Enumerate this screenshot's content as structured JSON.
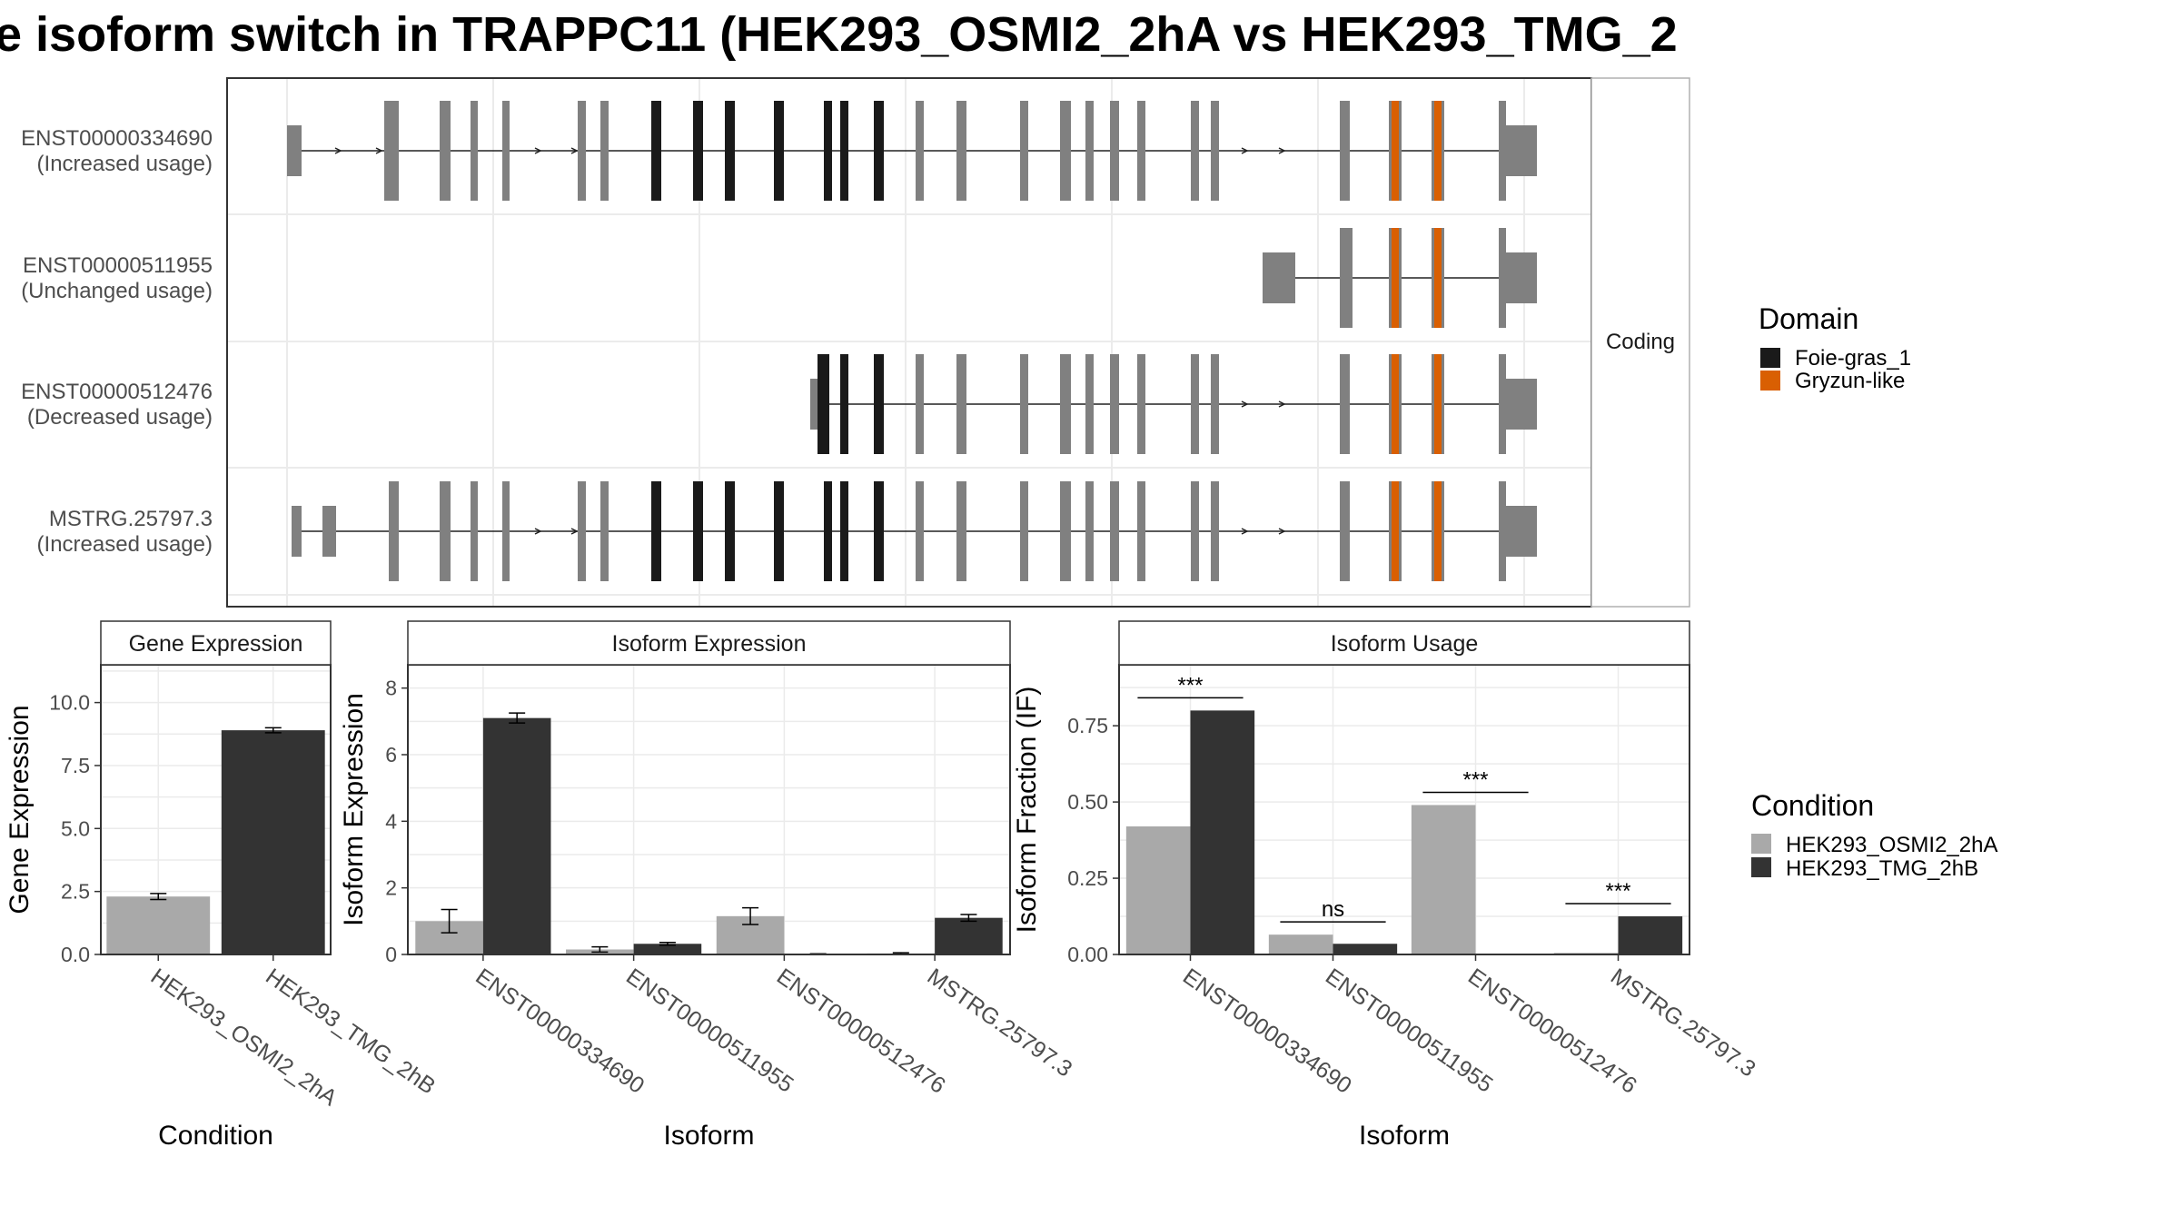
{
  "title": "e isoform switch in TRAPPC11 (HEK293_OSMI2_2hA vs HEK293_TMG_2",
  "colors": {
    "intron": "#222222",
    "exon_other": "#808080",
    "domain_foie": "#1a1a1a",
    "domain_gryzun": "#d95f02",
    "cond_osmi": "#a9a9a9",
    "cond_tmg": "#333333",
    "panel_border": "#333333",
    "strip_fill": "#ffffff",
    "grid": "#ebebeb"
  },
  "chart_data": [
    {
      "type": "table",
      "name": "isoform-structure",
      "strip_label": "Coding",
      "isoforms": [
        {
          "id": "ENST00000334690",
          "usage": "(Increased usage)"
        },
        {
          "id": "ENST00000511955",
          "usage": "(Unchanged usage)"
        },
        {
          "id": "ENST00000512476",
          "usage": "(Decreased usage)"
        },
        {
          "id": "MSTRG.25797.3",
          "usage": "(Increased usage)"
        }
      ],
      "legend": {
        "title": "Domain",
        "entries": [
          {
            "label": "Foie-gras_1",
            "color": "#1a1a1a"
          },
          {
            "label": "Gryzun-like",
            "color": "#d95f02"
          }
        ]
      }
    },
    {
      "type": "bar",
      "name": "gene-expression",
      "strip_label": "Gene Expression",
      "xlabel": "Condition",
      "ylabel": "Gene Expression",
      "ylim": [
        0,
        11.5
      ],
      "yticks": [
        "0.0",
        "2.5",
        "5.0",
        "7.5",
        "10.0"
      ],
      "categories": [
        "HEK293_OSMI2_2hA",
        "HEK293_TMG_2hB"
      ],
      "values": [
        2.3,
        8.9
      ],
      "errors": [
        0.12,
        0.1
      ]
    },
    {
      "type": "bar",
      "name": "isoform-expression",
      "strip_label": "Isoform Expression",
      "xlabel": "Isoform",
      "ylabel": "Isoform Expression",
      "ylim": [
        0,
        8.7
      ],
      "yticks": [
        "0",
        "2",
        "4",
        "6",
        "8"
      ],
      "categories": [
        "ENST00000334690",
        "ENST00000511955",
        "ENST00000512476",
        "MSTRG.25797.3"
      ],
      "series": [
        {
          "name": "HEK293_OSMI2_2hA",
          "values": [
            1.0,
            0.15,
            1.15,
            0.03
          ],
          "errors": [
            0.35,
            0.08,
            0.25,
            0.02
          ]
        },
        {
          "name": "HEK293_TMG_2hB",
          "values": [
            7.1,
            0.32,
            0.01,
            1.1
          ],
          "errors": [
            0.15,
            0.04,
            0.01,
            0.1
          ]
        }
      ]
    },
    {
      "type": "bar",
      "name": "isoform-usage",
      "strip_label": "Isoform Usage",
      "xlabel": "Isoform",
      "ylabel": "Isoform Fraction (IF)",
      "ylim": [
        0,
        0.95
      ],
      "yticks": [
        "0.00",
        "0.25",
        "0.50",
        "0.75"
      ],
      "categories": [
        "ENST00000334690",
        "ENST00000511955",
        "ENST00000512476",
        "MSTRG.25797.3"
      ],
      "series": [
        {
          "name": "HEK293_OSMI2_2hA",
          "values": [
            0.42,
            0.065,
            0.49,
            0.005
          ]
        },
        {
          "name": "HEK293_TMG_2hB",
          "values": [
            0.8,
            0.035,
            0.0,
            0.125
          ]
        }
      ],
      "significance": [
        "***",
        "ns",
        "***",
        "***"
      ],
      "legend": {
        "title": "Condition",
        "entries": [
          {
            "label": "HEK293_OSMI2_2hA",
            "color": "#a9a9a9"
          },
          {
            "label": "HEK293_TMG_2hB",
            "color": "#333333"
          }
        ]
      }
    }
  ]
}
